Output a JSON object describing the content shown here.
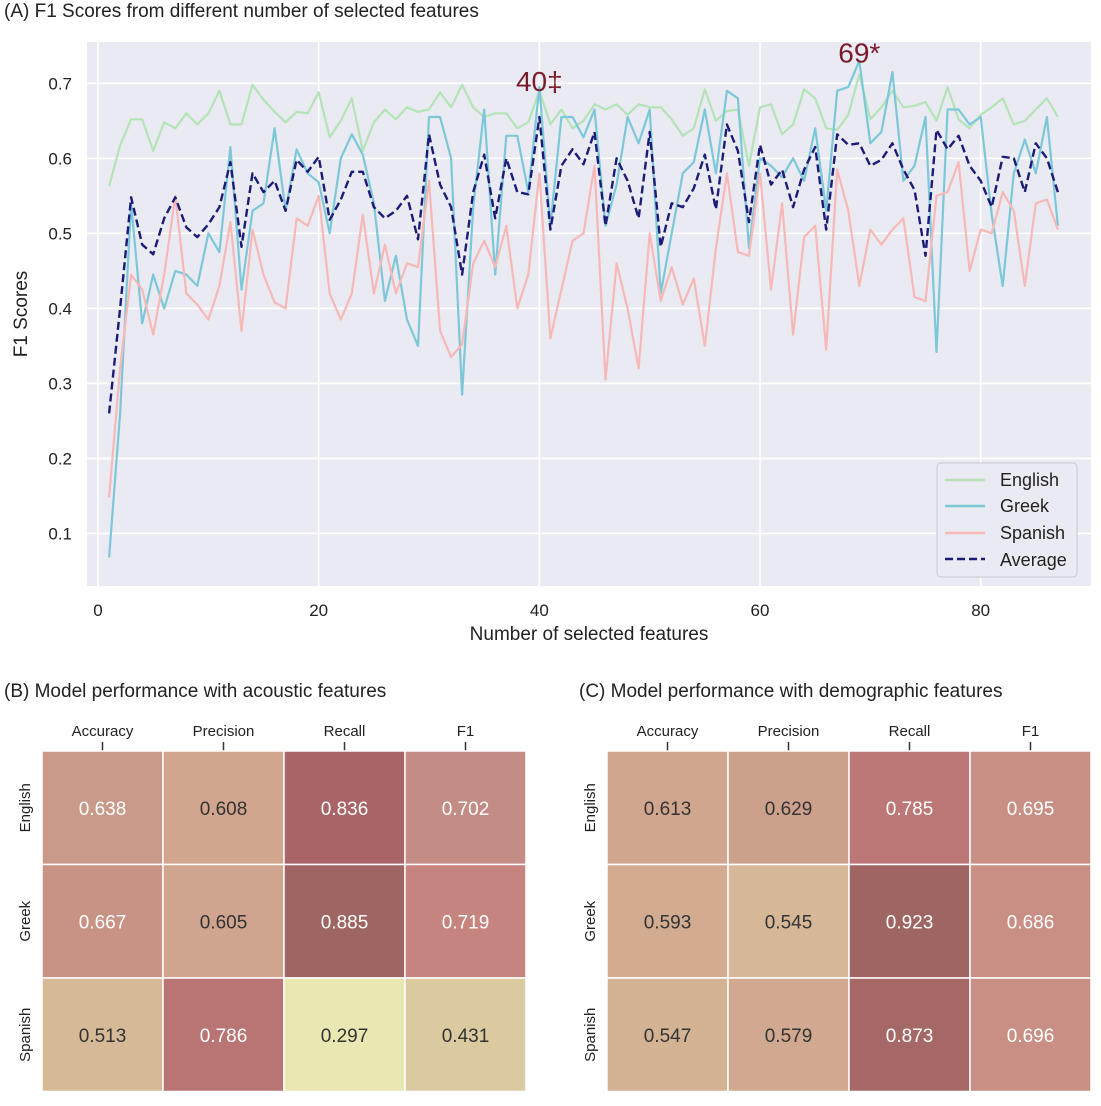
{
  "chart_data": [
    {
      "type": "line",
      "title": "(A) F1 Scores from different number of selected features",
      "xlabel": "Number of selected features",
      "ylabel": "F1 Scores",
      "xlim": [
        -1,
        90
      ],
      "ylim": [
        0.03,
        0.755
      ],
      "xticks": [
        0,
        20,
        40,
        60,
        80
      ],
      "yticks": [
        0.1,
        0.2,
        0.3,
        0.4,
        0.5,
        0.6,
        0.7
      ],
      "grid": true,
      "legend_position": "bottom-right",
      "annotations": [
        {
          "text": "40‡",
          "x": 40,
          "y": 0.69,
          "color": "#7a1c2c"
        },
        {
          "text": "69*",
          "x": 69,
          "y": 0.728,
          "color": "#7a1c2c"
        }
      ],
      "series": [
        {
          "name": "English",
          "color": "#b5e3b8",
          "dash": false,
          "values": [
            0.563,
            0.617,
            0.652,
            0.652,
            0.61,
            0.648,
            0.64,
            0.66,
            0.645,
            0.66,
            0.69,
            0.645,
            0.645,
            0.698,
            0.678,
            0.662,
            0.648,
            0.662,
            0.66,
            0.688,
            0.628,
            0.65,
            0.68,
            0.61,
            0.648,
            0.665,
            0.652,
            0.668,
            0.662,
            0.665,
            0.688,
            0.668,
            0.698,
            0.668,
            0.655,
            0.66,
            0.66,
            0.64,
            0.648,
            0.69,
            0.645,
            0.665,
            0.64,
            0.65,
            0.672,
            0.665,
            0.672,
            0.658,
            0.672,
            0.668,
            0.668,
            0.652,
            0.63,
            0.64,
            0.692,
            0.65,
            0.663,
            0.665,
            0.59,
            0.668,
            0.672,
            0.632,
            0.645,
            0.692,
            0.68,
            0.64,
            0.638,
            0.658,
            0.712,
            0.652,
            0.668,
            0.69,
            0.668,
            0.67,
            0.675,
            0.65,
            0.695,
            0.652,
            0.64,
            0.658,
            0.668,
            0.68,
            0.645,
            0.65,
            0.665,
            0.68,
            0.655
          ]
        },
        {
          "name": "Greek",
          "color": "#7cc8d8",
          "dash": false,
          "values": [
            0.068,
            0.26,
            0.54,
            0.38,
            0.445,
            0.4,
            0.45,
            0.445,
            0.43,
            0.5,
            0.475,
            0.615,
            0.425,
            0.53,
            0.54,
            0.64,
            0.53,
            0.612,
            0.58,
            0.568,
            0.5,
            0.6,
            0.632,
            0.605,
            0.54,
            0.41,
            0.47,
            0.385,
            0.35,
            0.655,
            0.655,
            0.6,
            0.285,
            0.535,
            0.665,
            0.445,
            0.63,
            0.63,
            0.555,
            0.695,
            0.51,
            0.655,
            0.655,
            0.628,
            0.665,
            0.51,
            0.565,
            0.655,
            0.62,
            0.665,
            0.42,
            0.5,
            0.58,
            0.595,
            0.665,
            0.58,
            0.69,
            0.68,
            0.48,
            0.6,
            0.59,
            0.575,
            0.6,
            0.57,
            0.64,
            0.53,
            0.69,
            0.695,
            0.73,
            0.62,
            0.635,
            0.715,
            0.57,
            0.59,
            0.655,
            0.342,
            0.665,
            0.665,
            0.645,
            0.655,
            0.525,
            0.43,
            0.58,
            0.625,
            0.58,
            0.655,
            0.51
          ]
        },
        {
          "name": "Spanish",
          "color": "#f7b8b8",
          "dash": false,
          "values": [
            0.148,
            0.32,
            0.445,
            0.425,
            0.365,
            0.445,
            0.55,
            0.42,
            0.405,
            0.385,
            0.43,
            0.515,
            0.37,
            0.505,
            0.445,
            0.408,
            0.4,
            0.52,
            0.51,
            0.55,
            0.42,
            0.385,
            0.42,
            0.525,
            0.42,
            0.485,
            0.42,
            0.46,
            0.455,
            0.57,
            0.37,
            0.335,
            0.352,
            0.46,
            0.49,
            0.455,
            0.51,
            0.4,
            0.445,
            0.58,
            0.36,
            0.425,
            0.49,
            0.5,
            0.59,
            0.305,
            0.46,
            0.4,
            0.32,
            0.5,
            0.41,
            0.455,
            0.405,
            0.44,
            0.35,
            0.48,
            0.58,
            0.475,
            0.47,
            0.58,
            0.425,
            0.54,
            0.365,
            0.495,
            0.51,
            0.345,
            0.585,
            0.53,
            0.43,
            0.505,
            0.485,
            0.505,
            0.52,
            0.415,
            0.41,
            0.55,
            0.555,
            0.595,
            0.45,
            0.505,
            0.5,
            0.555,
            0.53,
            0.43,
            0.54,
            0.545,
            0.505
          ]
        },
        {
          "name": "Average",
          "color": "#1c1c78",
          "dash": true,
          "values": [
            0.26,
            0.4,
            0.548,
            0.485,
            0.472,
            0.52,
            0.548,
            0.508,
            0.495,
            0.512,
            0.535,
            0.595,
            0.482,
            0.58,
            0.555,
            0.57,
            0.53,
            0.598,
            0.582,
            0.602,
            0.518,
            0.545,
            0.582,
            0.582,
            0.535,
            0.52,
            0.53,
            0.55,
            0.492,
            0.632,
            0.565,
            0.535,
            0.445,
            0.555,
            0.605,
            0.52,
            0.6,
            0.555,
            0.552,
            0.655,
            0.505,
            0.59,
            0.612,
            0.592,
            0.635,
            0.51,
            0.6,
            0.57,
            0.52,
            0.635,
            0.482,
            0.54,
            0.535,
            0.56,
            0.605,
            0.532,
            0.645,
            0.61,
            0.515,
            0.618,
            0.565,
            0.585,
            0.535,
            0.585,
            0.615,
            0.505,
            0.632,
            0.618,
            0.62,
            0.59,
            0.598,
            0.62,
            0.585,
            0.558,
            0.47,
            0.638,
            0.612,
            0.63,
            0.59,
            0.57,
            0.535,
            0.602,
            0.6,
            0.555,
            0.62,
            0.6,
            0.555
          ]
        }
      ]
    },
    {
      "type": "heatmap",
      "title": "(B) Model performance with acoustic features",
      "columns": [
        "Accuracy",
        "Precision",
        "Recall",
        "F1"
      ],
      "rows": [
        "English",
        "Greek",
        "Spanish"
      ],
      "values": [
        [
          0.638,
          0.608,
          0.836,
          0.702
        ],
        [
          0.667,
          0.605,
          0.885,
          0.719
        ],
        [
          0.513,
          0.786,
          0.297,
          0.431
        ]
      ],
      "cell_colors": [
        [
          "#c9998a",
          "#d1a58e",
          "#a86466",
          "#c38c85"
        ],
        [
          "#c89385",
          "#d0a48f",
          "#9f6562",
          "#c6847f"
        ],
        [
          "#d6b996",
          "#b97474",
          "#e9e8b3",
          "#dbcaa0"
        ]
      ],
      "label_colors": [
        [
          "#ffffff",
          "#333333",
          "#ffffff",
          "#ffffff"
        ],
        [
          "#ffffff",
          "#333333",
          "#ffffff",
          "#ffffff"
        ],
        [
          "#333333",
          "#ffffff",
          "#333333",
          "#333333"
        ]
      ]
    },
    {
      "type": "heatmap",
      "title": "(C) Model performance with demographic features",
      "columns": [
        "Accuracy",
        "Precision",
        "Recall",
        "F1"
      ],
      "rows": [
        "English",
        "Greek",
        "Spanish"
      ],
      "values": [
        [
          0.613,
          0.629,
          0.785,
          0.695
        ],
        [
          0.593,
          0.545,
          0.923,
          0.686
        ],
        [
          0.547,
          0.579,
          0.873,
          0.696
        ]
      ],
      "cell_colors": [
        [
          "#d0a68e",
          "#cda08c",
          "#bd7777",
          "#c88f84"
        ],
        [
          "#d2ab91",
          "#d6b898",
          "#9e6562",
          "#c98f84"
        ],
        [
          "#d4b294",
          "#d1a990",
          "#a66866",
          "#c98f84"
        ]
      ],
      "label_colors": [
        [
          "#333333",
          "#333333",
          "#ffffff",
          "#ffffff"
        ],
        [
          "#333333",
          "#333333",
          "#ffffff",
          "#ffffff"
        ],
        [
          "#333333",
          "#333333",
          "#ffffff",
          "#ffffff"
        ]
      ]
    }
  ]
}
